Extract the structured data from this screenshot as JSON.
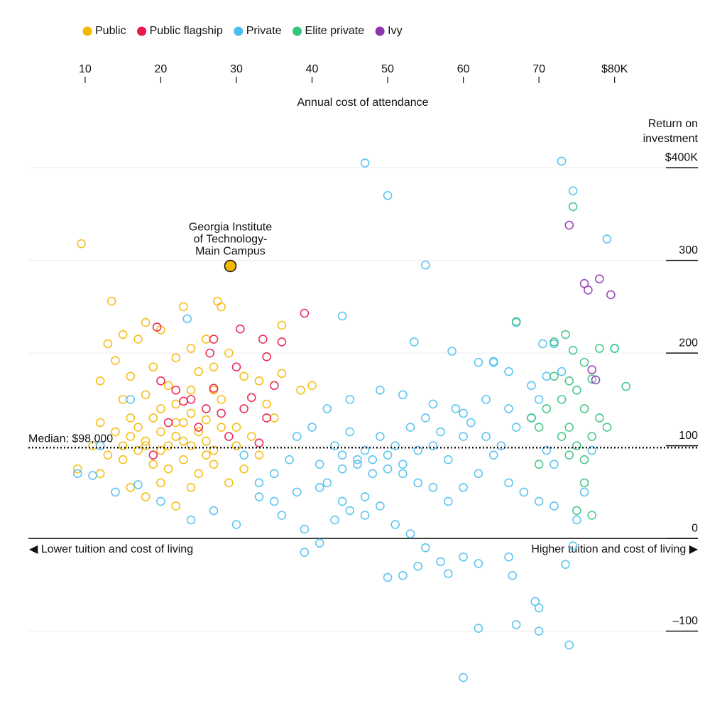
{
  "chart_data": {
    "type": "scatter",
    "x_label": "Annual cost of attendance",
    "y_label": [
      "Return on",
      "investment"
    ],
    "left_note": "◀ Lower tuition and cost of living",
    "right_note": "Higher tuition and cost of living ▶",
    "xlim": [
      2.5,
      91.2
    ],
    "ylim": [
      -170,
      420
    ],
    "xticks": [
      10,
      20,
      30,
      40,
      50,
      60,
      70,
      {
        "value": 80,
        "label": "$80K"
      }
    ],
    "yticks": [
      {
        "value": 400,
        "label": "$400K"
      },
      300,
      200,
      100,
      0,
      {
        "value": -100,
        "label": "–100"
      }
    ],
    "grid": true,
    "legend": "top",
    "median": {
      "label": "Median: $98,000",
      "value": 98
    },
    "highlight": {
      "label": [
        "Georgia Institute",
        "of Technology-",
        "Main Campus"
      ],
      "x": 29.2,
      "value": 294,
      "color": "#f5b800"
    },
    "series": [
      {
        "name": "Public",
        "color": "#f5b800",
        "x": [
          9.5,
          13.5,
          27.5,
          23,
          28,
          18,
          36,
          15,
          20,
          24,
          26,
          13,
          17,
          22,
          29,
          14,
          19,
          25,
          31,
          12,
          16,
          21,
          27,
          33,
          36,
          15,
          18,
          20,
          22,
          24,
          26,
          28,
          30,
          34,
          12,
          14,
          16,
          17,
          18,
          19,
          20,
          21,
          22,
          23,
          24,
          25,
          26,
          27,
          28,
          32,
          35,
          11,
          13,
          15,
          17,
          19,
          21,
          23,
          25,
          27,
          29,
          31,
          16,
          20,
          24,
          12,
          18,
          22,
          9,
          40,
          38.5,
          26,
          20,
          18,
          22,
          24,
          30,
          33,
          16,
          27,
          15,
          23
        ],
        "values": [
          318,
          256,
          256,
          250,
          250,
          233,
          230,
          220,
          225,
          205,
          215,
          210,
          215,
          195,
          200,
          192,
          185,
          180,
          175,
          170,
          175,
          165,
          160,
          170,
          178,
          150,
          155,
          140,
          145,
          135,
          128,
          150,
          120,
          145,
          125,
          115,
          110,
          120,
          105,
          130,
          115,
          100,
          110,
          125,
          100,
          115,
          105,
          95,
          120,
          110,
          130,
          100,
          90,
          85,
          95,
          80,
          75,
          85,
          70,
          80,
          60,
          75,
          55,
          60,
          55,
          70,
          45,
          35,
          75,
          165,
          160,
          90,
          95,
          100,
          125,
          160,
          100,
          90,
          130,
          185,
          100,
          105
        ]
      },
      {
        "name": "Public flagship",
        "color": "#e8174a",
        "x": [
          39,
          19.5,
          30.5,
          27,
          33.5,
          36,
          26.5,
          34,
          30,
          20,
          22,
          24,
          26,
          28,
          32,
          34,
          21,
          23,
          25,
          27,
          29,
          33,
          19,
          35,
          31
        ],
        "values": [
          243,
          228,
          226,
          215,
          215,
          212,
          200,
          196,
          185,
          170,
          160,
          150,
          140,
          135,
          152,
          130,
          125,
          148,
          120,
          162,
          110,
          103,
          90,
          165,
          140
        ]
      },
      {
        "name": "Private",
        "color": "#4dbfef",
        "x": [
          47,
          50,
          73,
          74.5,
          79,
          55,
          44,
          23.5,
          53.5,
          58.5,
          67,
          72,
          70.5,
          80,
          16,
          12,
          9,
          11,
          14,
          17,
          20,
          24,
          27,
          30,
          33,
          36,
          39,
          39,
          41,
          43,
          45,
          47,
          49,
          51,
          53,
          55,
          57,
          60,
          52,
          50,
          54,
          58,
          62,
          66,
          66.5,
          62,
          67,
          70,
          70,
          69.5,
          74,
          60,
          73.5,
          74.5,
          42,
          44,
          46,
          48,
          50,
          52,
          54,
          56,
          58,
          60,
          62,
          64,
          66,
          68,
          70,
          72,
          40,
          43,
          45,
          47,
          49,
          51,
          53,
          55,
          57,
          59,
          61,
          63,
          65,
          67,
          69,
          71,
          41,
          44,
          46,
          48,
          50,
          52,
          37,
          35,
          33,
          31,
          38,
          42,
          45,
          49,
          52,
          56,
          60,
          63,
          66,
          69,
          71,
          73,
          64,
          66,
          70,
          60,
          58,
          56,
          54,
          47,
          44,
          41,
          38,
          35,
          75,
          76,
          72,
          77,
          62,
          64
        ],
        "values": [
          405,
          370,
          407,
          375,
          323,
          295,
          240,
          237,
          212,
          202,
          233,
          210,
          210,
          205,
          150,
          100,
          70,
          68,
          50,
          58,
          40,
          20,
          30,
          15,
          45,
          25,
          10,
          -15,
          -5,
          20,
          30,
          25,
          35,
          15,
          5,
          -10,
          -25,
          -20,
          -40,
          -42,
          -30,
          -38,
          -27,
          -20,
          -40,
          -97,
          -93,
          -100,
          -75,
          -68,
          -115,
          -150,
          -28,
          -8,
          60,
          75,
          85,
          70,
          90,
          80,
          95,
          100,
          85,
          110,
          70,
          90,
          60,
          50,
          40,
          80,
          120,
          100,
          115,
          95,
          110,
          100,
          120,
          130,
          115,
          140,
          125,
          110,
          100,
          120,
          130,
          95,
          80,
          90,
          80,
          85,
          75,
          70,
          85,
          70,
          60,
          90,
          110,
          140,
          150,
          160,
          155,
          145,
          135,
          150,
          140,
          165,
          175,
          180,
          190,
          180,
          150,
          55,
          40,
          55,
          60,
          45,
          40,
          55,
          50,
          40,
          20,
          50,
          35,
          95,
          190,
          191
        ]
      },
      {
        "name": "Elite private",
        "color": "#34c47c",
        "x": [
          74.5,
          67,
          72,
          73.5,
          74.5,
          76,
          78,
          80,
          81.5,
          77,
          75,
          74,
          73,
          72,
          76,
          74,
          77,
          79,
          75,
          73,
          76,
          74,
          78,
          76,
          75,
          77,
          70,
          69,
          71,
          70
        ],
        "values": [
          358,
          234,
          212,
          220,
          203,
          190,
          205,
          205,
          164,
          172,
          160,
          170,
          150,
          175,
          140,
          120,
          110,
          120,
          100,
          110,
          85,
          90,
          130,
          60,
          30,
          25,
          80,
          130,
          140,
          120
        ]
      },
      {
        "name": "Ivy",
        "color": "#8e35b0",
        "x": [
          74,
          76,
          78,
          79.5,
          77,
          77.5,
          76.5
        ],
        "values": [
          338,
          275,
          280,
          263,
          182,
          171,
          268
        ]
      }
    ]
  }
}
